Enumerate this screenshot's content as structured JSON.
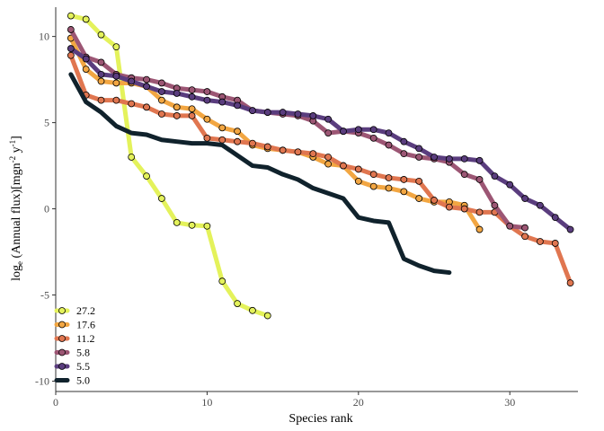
{
  "chart_data": {
    "type": "line",
    "title": "",
    "xlabel": "Species rank",
    "ylabel": {
      "base": "log",
      "subscript": "e",
      "main": " (Annual flux)[mgn",
      "sup1": "-2",
      "mid": " y",
      "sup2": "-1",
      "end": "]"
    },
    "xlim": [
      0,
      34.5
    ],
    "ylim": [
      -10.6,
      11.7
    ],
    "x_ticks": [
      0,
      10,
      20,
      30
    ],
    "y_ticks": [
      -10,
      -5,
      0,
      5,
      10
    ],
    "x_tick_labels": [
      "0",
      "10",
      "20",
      "30"
    ],
    "y_tick_labels": [
      "-10",
      "-5",
      "0",
      "5",
      "10"
    ],
    "grid": false,
    "legend_position": "bottom-left",
    "series": [
      {
        "name": "27.2",
        "color": "#E4F25B",
        "markers": true,
        "x": [
          1,
          2,
          3,
          4,
          5,
          6,
          7,
          8,
          9,
          10,
          11,
          12,
          13,
          14
        ],
        "y": [
          11.2,
          11.0,
          10.1,
          9.4,
          3.0,
          1.9,
          0.6,
          -0.8,
          -0.95,
          -1.0,
          -4.2,
          -5.5,
          -5.9,
          -6.2
        ]
      },
      {
        "name": "17.6",
        "color": "#F2A642",
        "markers": true,
        "x": [
          1,
          2,
          3,
          4,
          5,
          6,
          7,
          8,
          9,
          10,
          11,
          12,
          13,
          14,
          15,
          16,
          17,
          18,
          19,
          20,
          21,
          22,
          23,
          24,
          25,
          26,
          27,
          28
        ],
        "y": [
          9.9,
          8.1,
          7.4,
          7.3,
          7.3,
          7.1,
          6.3,
          5.9,
          5.8,
          5.2,
          4.7,
          4.5,
          3.7,
          3.5,
          3.4,
          3.3,
          3.0,
          2.6,
          2.5,
          1.6,
          1.3,
          1.2,
          1.0,
          0.6,
          0.4,
          0.4,
          0.2,
          -1.2
        ]
      },
      {
        "name": "11.2",
        "color": "#E07650",
        "markers": true,
        "x": [
          1,
          2,
          3,
          4,
          5,
          6,
          7,
          8,
          9,
          10,
          11,
          12,
          13,
          14,
          15,
          16,
          17,
          18,
          19,
          20,
          21,
          22,
          23,
          24,
          25,
          26,
          27,
          28,
          29,
          30,
          31,
          32,
          33,
          34
        ],
        "y": [
          8.9,
          6.6,
          6.3,
          6.3,
          6.1,
          5.9,
          5.5,
          5.4,
          5.4,
          4.1,
          4.0,
          3.9,
          3.8,
          3.6,
          3.4,
          3.3,
          3.2,
          3.0,
          2.5,
          2.3,
          2.0,
          1.8,
          1.7,
          1.6,
          0.5,
          0.1,
          0.0,
          -0.2,
          -0.2,
          -1.0,
          -1.6,
          -1.9,
          -2.0,
          -4.3
        ]
      },
      {
        "name": "5.8",
        "color": "#9C5674",
        "markers": true,
        "x": [
          1,
          2,
          3,
          4,
          5,
          6,
          7,
          8,
          9,
          10,
          11,
          12,
          13,
          14,
          15,
          16,
          17,
          18,
          19,
          20,
          21,
          22,
          23,
          24,
          25,
          26,
          27,
          28,
          29,
          30,
          31
        ],
        "y": [
          10.4,
          8.8,
          8.5,
          7.8,
          7.6,
          7.5,
          7.3,
          7.0,
          6.9,
          6.8,
          6.5,
          6.3,
          5.7,
          5.6,
          5.5,
          5.4,
          5.1,
          4.4,
          4.5,
          4.4,
          4.1,
          3.7,
          3.2,
          3.0,
          2.9,
          2.7,
          2.0,
          1.7,
          0.2,
          -1.0,
          -1.1
        ]
      },
      {
        "name": "5.5",
        "color": "#5A3D7E",
        "markers": true,
        "x": [
          1,
          2,
          3,
          4,
          5,
          6,
          7,
          8,
          9,
          10,
          11,
          12,
          13,
          14,
          15,
          16,
          17,
          18,
          19,
          20,
          21,
          22,
          23,
          24,
          25,
          26,
          27,
          28,
          29,
          30,
          31,
          32,
          33,
          34
        ],
        "y": [
          9.3,
          8.7,
          7.8,
          7.7,
          7.4,
          7.1,
          6.8,
          6.7,
          6.5,
          6.3,
          6.2,
          6.0,
          5.7,
          5.6,
          5.6,
          5.5,
          5.4,
          5.2,
          4.5,
          4.6,
          4.6,
          4.4,
          3.9,
          3.5,
          3.0,
          2.9,
          2.9,
          2.8,
          1.9,
          1.4,
          0.6,
          0.2,
          -0.5,
          -1.2
        ]
      },
      {
        "name": "5.0",
        "color": "#10222C",
        "markers": false,
        "x": [
          1,
          2,
          3,
          4,
          5,
          6,
          7,
          8,
          9,
          10,
          11,
          12,
          13,
          14,
          15,
          16,
          17,
          18,
          19,
          20,
          21,
          22,
          23,
          24,
          25,
          26
        ],
        "y": [
          7.8,
          6.2,
          5.6,
          4.8,
          4.4,
          4.3,
          4.0,
          3.9,
          3.8,
          3.8,
          3.7,
          3.1,
          2.5,
          2.4,
          2.0,
          1.7,
          1.2,
          0.9,
          0.6,
          -0.5,
          -0.7,
          -0.8,
          -2.9,
          -3.3,
          -3.6,
          -3.7
        ]
      }
    ]
  }
}
